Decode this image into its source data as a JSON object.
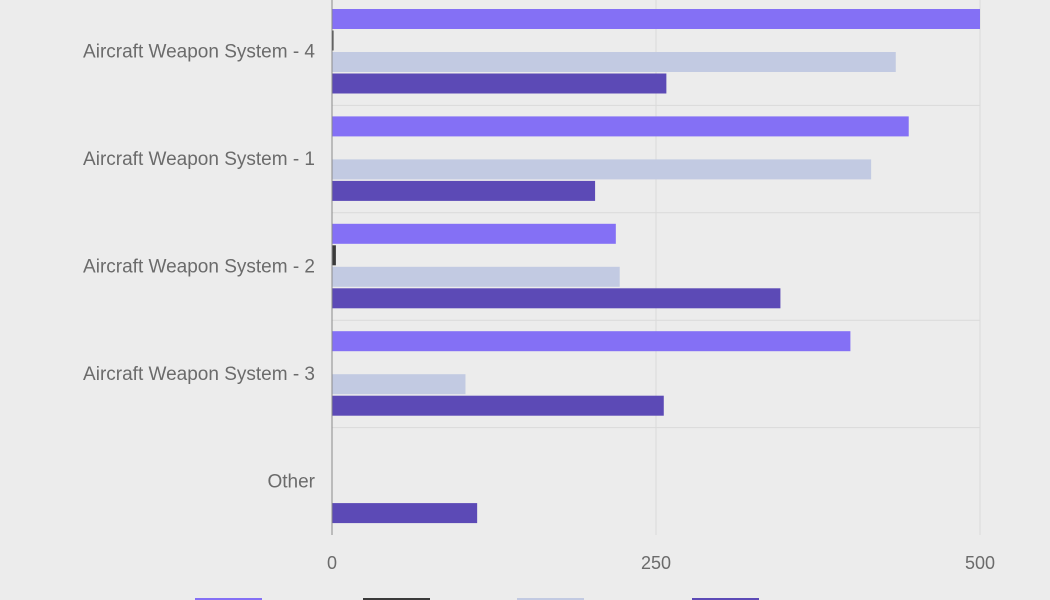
{
  "chart_data": {
    "type": "bar",
    "orientation": "horizontal",
    "title": "",
    "xlabel": "",
    "ylabel": "",
    "xlim": [
      0,
      500
    ],
    "xticks": [
      0,
      250,
      500
    ],
    "grid": true,
    "legend_position": "bottom",
    "categories": [
      "Aircraft Weapon System - 4",
      "Aircraft Weapon System - 1",
      "Aircraft Weapon System - 2",
      "Aircraft Weapon System - 3",
      "Other"
    ],
    "series": [
      {
        "name": "",
        "color": "#8470f5",
        "values": [
          500,
          445,
          219,
          400,
          0
        ]
      },
      {
        "name": "",
        "color": "#3a3a3a",
        "values": [
          1,
          0,
          3,
          0,
          0
        ]
      },
      {
        "name": "",
        "color": "#c2cae2",
        "values": [
          435,
          416,
          222,
          103,
          0
        ]
      },
      {
        "name": "",
        "color": "#5c4ab6",
        "values": [
          258,
          203,
          346,
          256,
          112
        ]
      }
    ]
  },
  "colors": {
    "background": "#ececec",
    "grid": "#dadada",
    "axis": "#8a8a8a",
    "text": "#6b6b6b"
  }
}
